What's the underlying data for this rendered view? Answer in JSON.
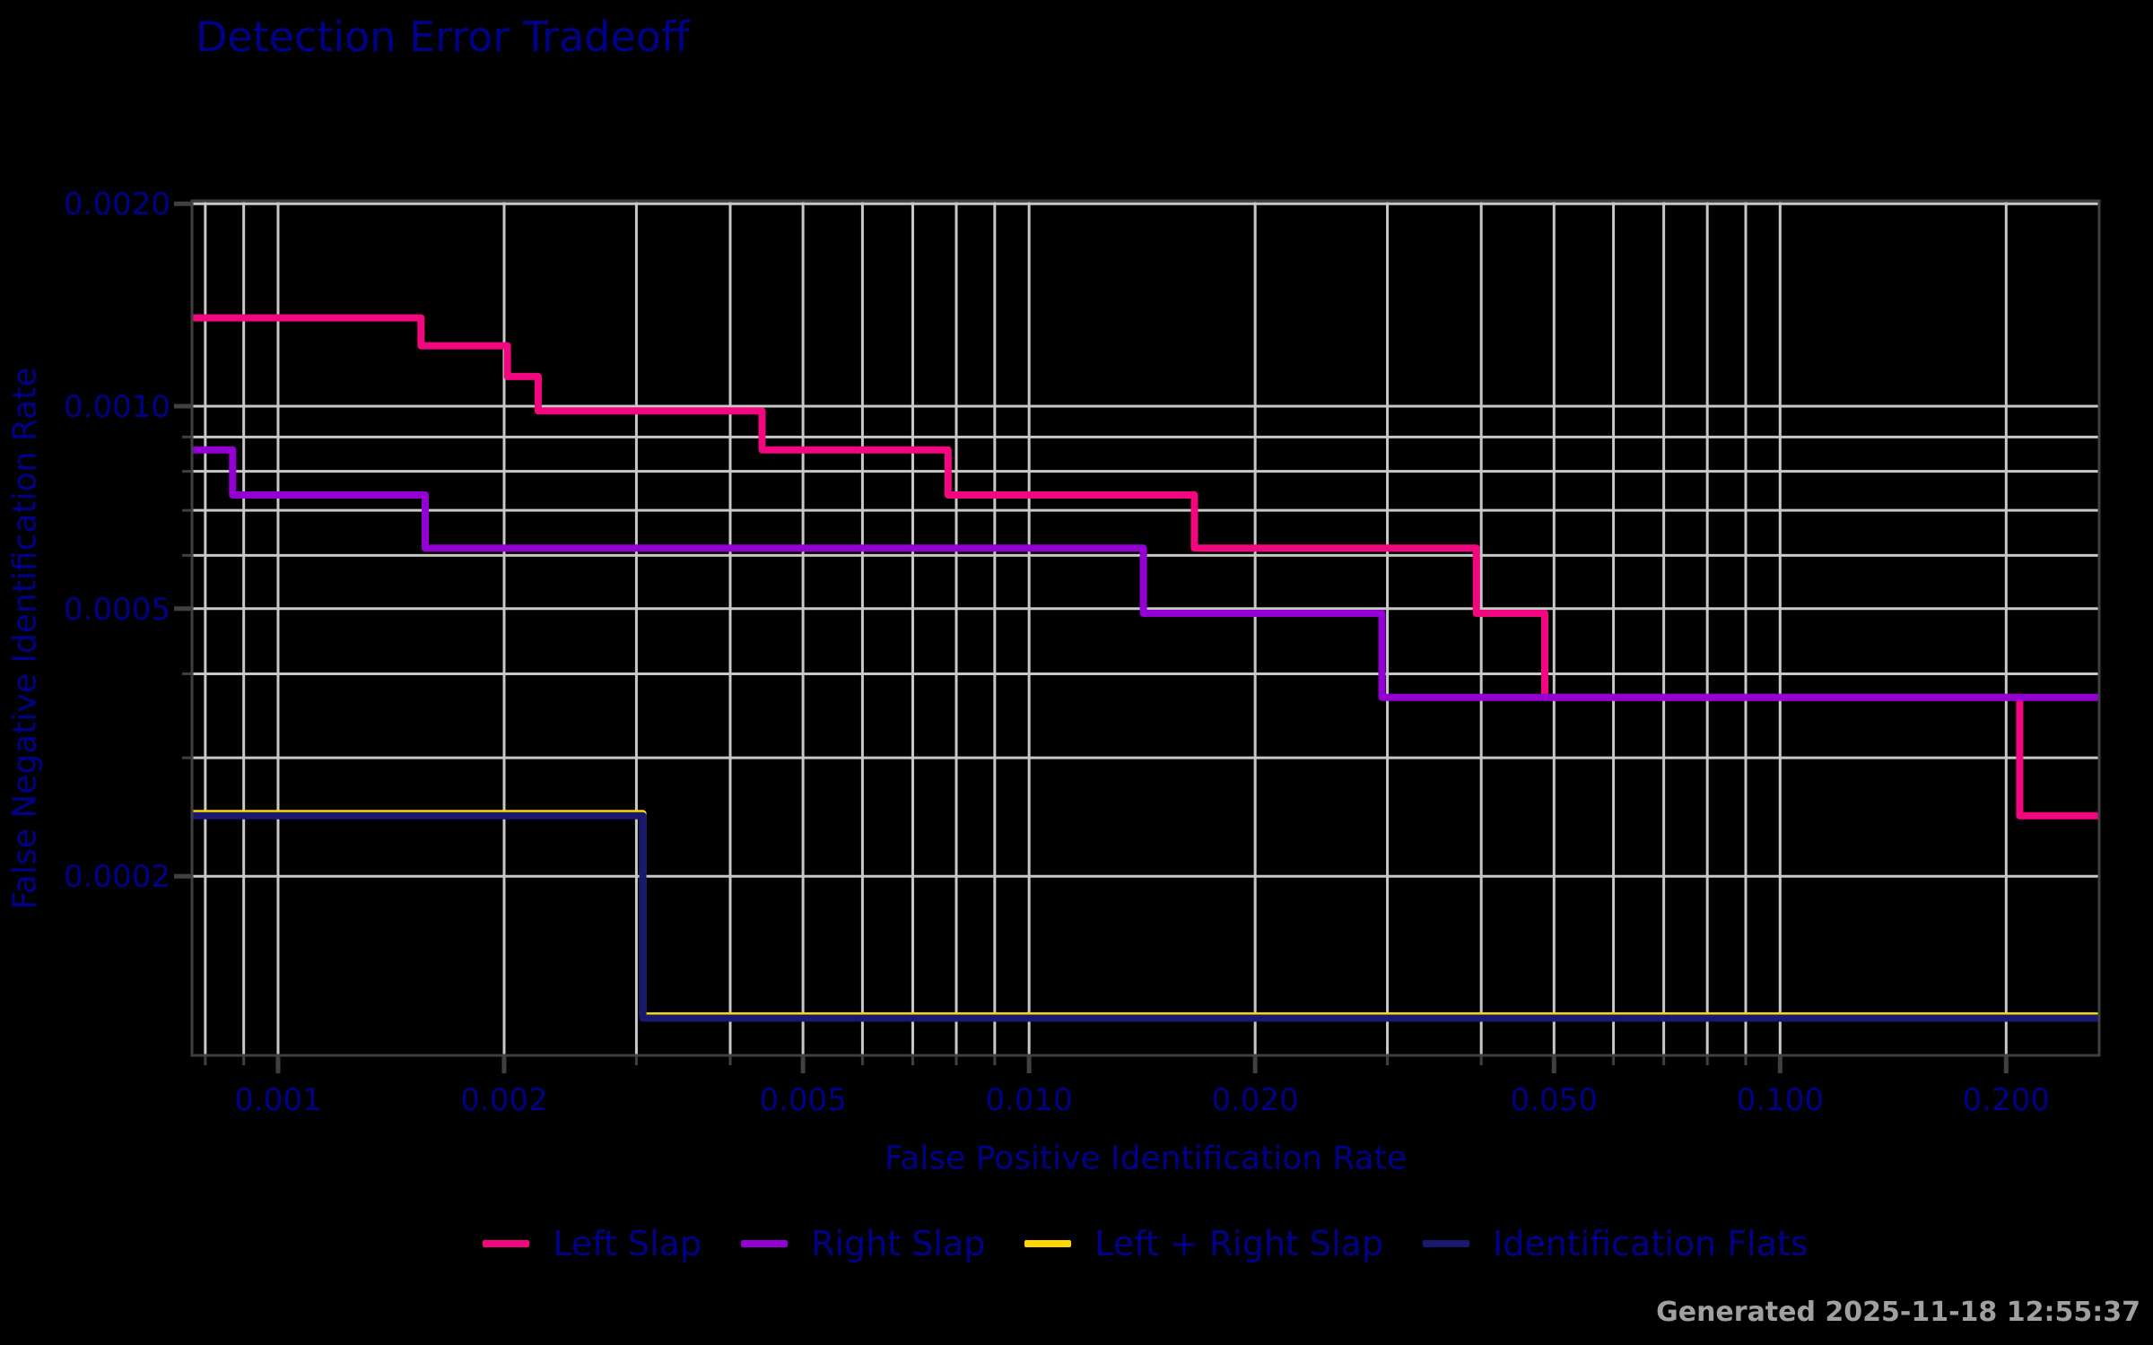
{
  "footer": {
    "generated": "Generated 2025-11-18 12:55:37"
  },
  "chart_data": {
    "type": "line",
    "subtype": "step-DET-log-log",
    "title": "Detection Error Tradeoff",
    "xlabel": "False Positive Identification Rate",
    "ylabel": "False Negative Identification Rate",
    "x_scale": "log",
    "y_scale": "log",
    "xlim": [
      0.000768,
      0.266
    ],
    "ylim": [
      0.0001083,
      0.00202
    ],
    "grid": true,
    "legend_position": "bottom-center",
    "background_color": "#000000",
    "grid_color": "#C8C8C8",
    "spine_color": "#3F3F3F",
    "tick_color": "#404040",
    "text_color": "#00008B",
    "timestamp_color": "#A0A0A0",
    "x_ticks": {
      "values": [
        0.001,
        0.002,
        0.005,
        0.01,
        0.02,
        0.05,
        0.1,
        0.2
      ],
      "labels": [
        "0.001",
        "0.002",
        "0.005",
        "0.010",
        "0.020",
        "0.050",
        "0.100",
        "0.200"
      ]
    },
    "y_ticks": {
      "values": [
        0.002,
        0.001,
        0.0005,
        0.0002
      ],
      "labels": [
        "0.0020",
        "0.0010",
        "0.0005",
        "0.0002"
      ]
    },
    "x_gridlines": [
      0.0008,
      0.0009,
      0.001,
      0.002,
      0.003,
      0.004,
      0.005,
      0.006,
      0.007,
      0.008,
      0.009,
      0.01,
      0.02,
      0.03,
      0.04,
      0.05,
      0.06,
      0.07,
      0.08,
      0.09,
      0.1,
      0.2
    ],
    "y_gridlines": [
      0.002,
      0.001,
      0.0009,
      0.0008,
      0.0007,
      0.0006,
      0.0005,
      0.0004,
      0.0003,
      0.0002
    ],
    "series": [
      {
        "name": "Left Slap",
        "color": "#F2077E",
        "points": [
          [
            0.000768,
            0.001353
          ],
          [
            0.00155,
            0.001353
          ],
          [
            0.00155,
            0.00123
          ],
          [
            0.00202,
            0.00123
          ],
          [
            0.00202,
            0.001107
          ],
          [
            0.00222,
            0.001107
          ],
          [
            0.00222,
            0.000984
          ],
          [
            0.00441,
            0.000984
          ],
          [
            0.00441,
            0.000861
          ],
          [
            0.0078,
            0.000861
          ],
          [
            0.0078,
            0.000738
          ],
          [
            0.0166,
            0.000738
          ],
          [
            0.0166,
            0.000615
          ],
          [
            0.0394,
            0.000615
          ],
          [
            0.0394,
            0.000492
          ],
          [
            0.0486,
            0.000492
          ],
          [
            0.0486,
            0.000369
          ],
          [
            0.2085,
            0.000369
          ],
          [
            0.2085,
            0.000246
          ],
          [
            0.266,
            0.000246
          ]
        ]
      },
      {
        "name": "Right Slap",
        "color": "#9400D3",
        "points": [
          [
            0.000768,
            0.000861
          ],
          [
            0.00087,
            0.000861
          ],
          [
            0.00087,
            0.000738
          ],
          [
            0.00157,
            0.000738
          ],
          [
            0.00157,
            0.000615
          ],
          [
            0.0142,
            0.000615
          ],
          [
            0.0142,
            0.000492
          ],
          [
            0.0295,
            0.000492
          ],
          [
            0.0295,
            0.000369
          ],
          [
            0.266,
            0.000369
          ]
        ]
      },
      {
        "name": "Left + Right Slap",
        "color": "#FFD700",
        "note": "curve coincides with Identification Flats and is almost fully hidden beneath it",
        "points": [
          [
            0.000768,
            0.000246
          ],
          [
            0.00306,
            0.000246
          ],
          [
            0.00306,
            0.000123
          ],
          [
            0.266,
            0.000123
          ]
        ]
      },
      {
        "name": "Identification Flats",
        "color": "#191970",
        "points": [
          [
            0.000768,
            0.000246
          ],
          [
            0.00306,
            0.000246
          ],
          [
            0.00306,
            0.000123
          ],
          [
            0.266,
            0.000123
          ]
        ]
      }
    ]
  }
}
